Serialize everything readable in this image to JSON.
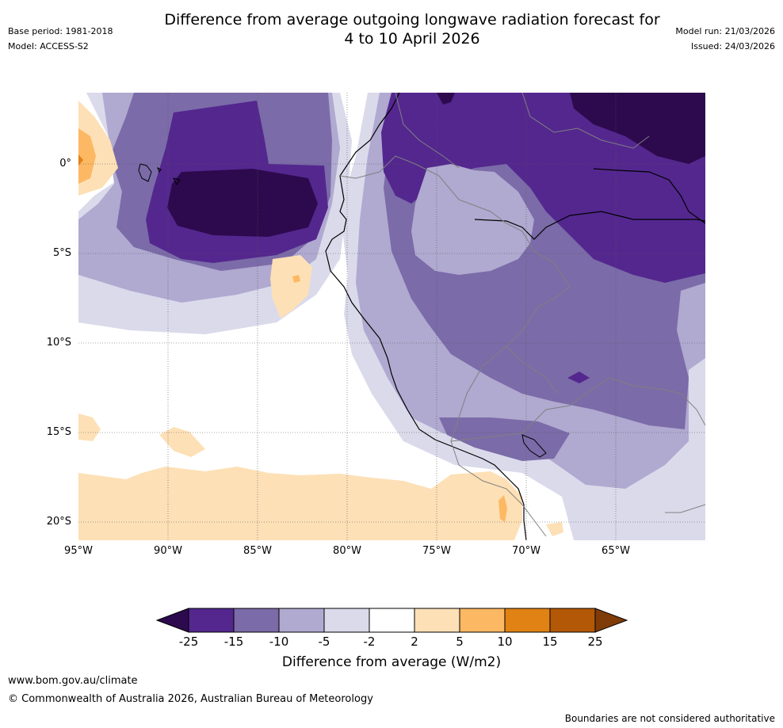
{
  "header": {
    "title_line1": "Difference from average outgoing longwave radiation forecast for",
    "title_line2": "4 to 10 April 2026",
    "base_period": "Base period: 1981-2018",
    "model": "Model: ACCESS-S2",
    "model_run": "Model run: 21/03/2026",
    "issued": "Issued: 24/03/2026"
  },
  "map": {
    "lat_labels": [
      "0°",
      "5°S",
      "10°S",
      "15°S",
      "20°S"
    ],
    "lon_labels": [
      "95°W",
      "90°W",
      "85°W",
      "80°W",
      "75°W",
      "70°W",
      "65°W"
    ]
  },
  "colorbar": {
    "label": "Difference from average (W/m2)",
    "ticks": [
      "-25",
      "-15",
      "-10",
      "-5",
      "-2",
      "2",
      "5",
      "10",
      "15",
      "25"
    ],
    "colors": [
      "#2d0a4e",
      "#54278f",
      "#7b6ba8",
      "#b0a9d0",
      "#dadaeb",
      "#ffffff",
      "#fde0b6",
      "#fdb863",
      "#e08214",
      "#b35806",
      "#7f3b08"
    ]
  },
  "footer": {
    "website": "www.bom.gov.au/climate",
    "copyright": "© Commonwealth of Australia 2026, Australian Bureau of Meteorology",
    "disclaimer": "Boundaries are not considered authoritative"
  }
}
